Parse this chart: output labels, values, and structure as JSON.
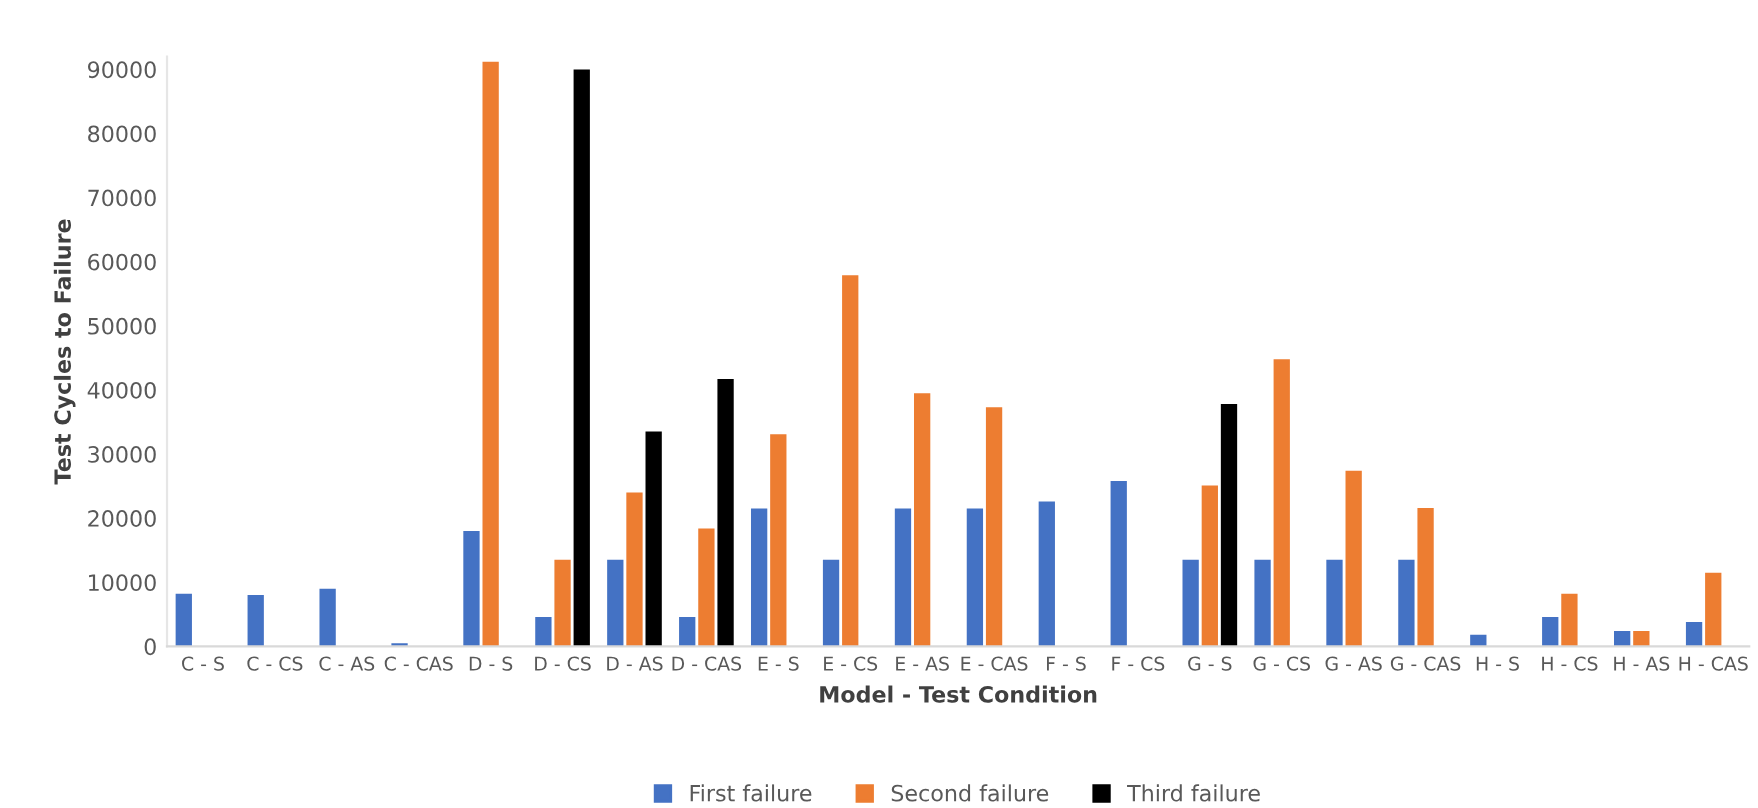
{
  "chart_data": {
    "type": "bar",
    "xlabel": "Model - Test Condition",
    "ylabel": "Test Cycles to Failure",
    "categories": [
      "C - S",
      "C - CS",
      "C - AS",
      "C - CAS",
      "D - S",
      "D - CS",
      "D - AS",
      "D - CAS",
      "E - S",
      "E - CS",
      "E - AS",
      "E - CAS",
      "F - S",
      "F - CS",
      "G - S",
      "G - CS",
      "G - AS",
      "G - CAS",
      "H - S",
      "H - CS",
      "H - AS",
      "H - CAS"
    ],
    "series": [
      {
        "name": "First failure",
        "color": "#4472c4",
        "values": [
          8200,
          8000,
          9000,
          500,
          18000,
          4600,
          13500,
          4600,
          21500,
          13500,
          21500,
          21500,
          22600,
          25800,
          13500,
          13500,
          13500,
          13500,
          1800,
          4600,
          2400,
          3800
        ]
      },
      {
        "name": "Second failure",
        "color": "#ed7d31",
        "values": [
          null,
          null,
          null,
          null,
          91200,
          13500,
          24000,
          18400,
          33100,
          57900,
          39500,
          37300,
          null,
          null,
          25100,
          44800,
          27400,
          21600,
          null,
          8200,
          2400,
          11500
        ]
      },
      {
        "name": "Third failure",
        "color": "#000000",
        "values": [
          null,
          null,
          null,
          null,
          null,
          90000,
          33500,
          41700,
          null,
          null,
          null,
          null,
          null,
          null,
          37800,
          null,
          null,
          null,
          null,
          null,
          null,
          null
        ]
      }
    ],
    "ylim": [
      0,
      92000
    ],
    "yticks": [
      0,
      10000,
      20000,
      30000,
      40000,
      50000,
      60000,
      70000,
      80000,
      90000
    ],
    "grid": false,
    "legend": "bottom"
  }
}
